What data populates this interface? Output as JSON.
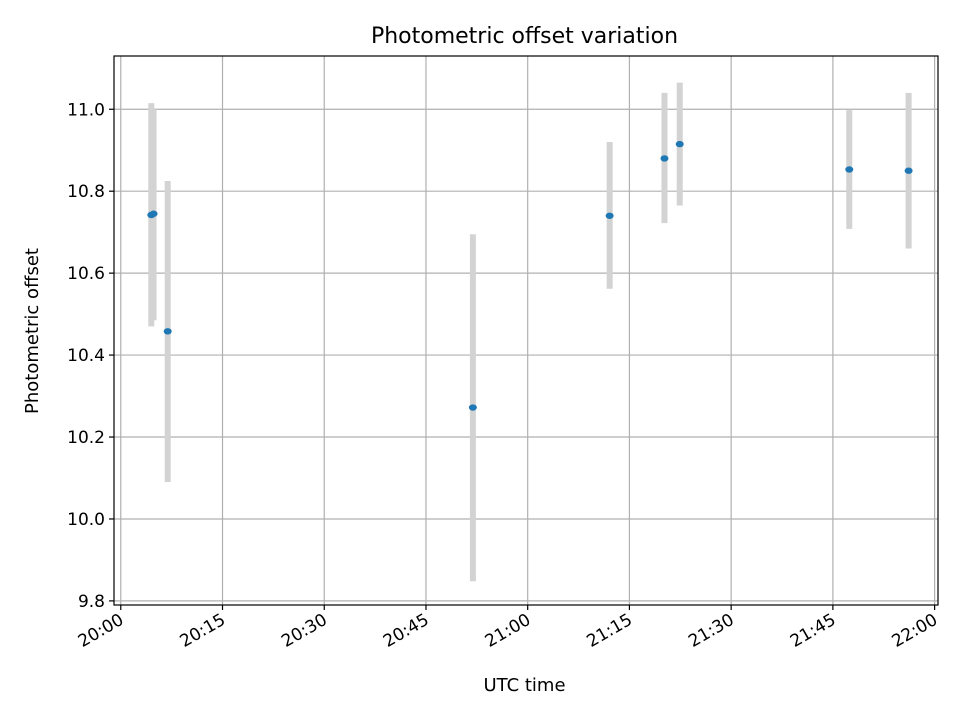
{
  "chart_data": {
    "type": "scatter",
    "title": "Photometric offset variation",
    "xlabel": "UTC time",
    "ylabel": "Photometric offset",
    "xlim": [
      "19:59:00",
      "22:00:30"
    ],
    "ylim": [
      9.79,
      11.13
    ],
    "grid": true,
    "x_ticks": [
      {
        "value": "20:00",
        "label": "20:00"
      },
      {
        "value": "20:15",
        "label": "20:15"
      },
      {
        "value": "20:30",
        "label": "20:30"
      },
      {
        "value": "20:45",
        "label": "20:45"
      },
      {
        "value": "21:00",
        "label": "21:00"
      },
      {
        "value": "21:15",
        "label": "21:15"
      },
      {
        "value": "21:30",
        "label": "21:30"
      },
      {
        "value": "21:45",
        "label": "21:45"
      },
      {
        "value": "22:00",
        "label": "22:00"
      }
    ],
    "y_ticks": [
      {
        "value": 9.8,
        "label": "9.8"
      },
      {
        "value": 10.0,
        "label": "10.0"
      },
      {
        "value": 10.2,
        "label": "10.2"
      },
      {
        "value": 10.4,
        "label": "10.4"
      },
      {
        "value": 10.6,
        "label": "10.6"
      },
      {
        "value": 10.8,
        "label": "10.8"
      },
      {
        "value": 11.0,
        "label": "11.0"
      }
    ],
    "series": [
      {
        "color": "#1f77b4",
        "error_color": "#d3d3d3",
        "points": [
          {
            "x": "20:04:30",
            "y": 10.742,
            "ymin": 10.47,
            "ymax": 11.015
          },
          {
            "x": "20:04:50",
            "y": 10.745,
            "ymin": 10.485,
            "ymax": 11.0
          },
          {
            "x": "20:06:55",
            "y": 10.458,
            "ymin": 10.09,
            "ymax": 10.825
          },
          {
            "x": "20:51:55",
            "y": 10.272,
            "ymin": 9.848,
            "ymax": 10.695
          },
          {
            "x": "21:12:05",
            "y": 10.74,
            "ymin": 10.562,
            "ymax": 10.92
          },
          {
            "x": "21:20:10",
            "y": 10.88,
            "ymin": 10.722,
            "ymax": 11.04
          },
          {
            "x": "21:22:25",
            "y": 10.915,
            "ymin": 10.765,
            "ymax": 11.065
          },
          {
            "x": "21:47:25",
            "y": 10.853,
            "ymin": 10.708,
            "ymax": 10.998
          },
          {
            "x": "21:56:10",
            "y": 10.85,
            "ymin": 10.66,
            "ymax": 11.04
          }
        ]
      }
    ]
  }
}
